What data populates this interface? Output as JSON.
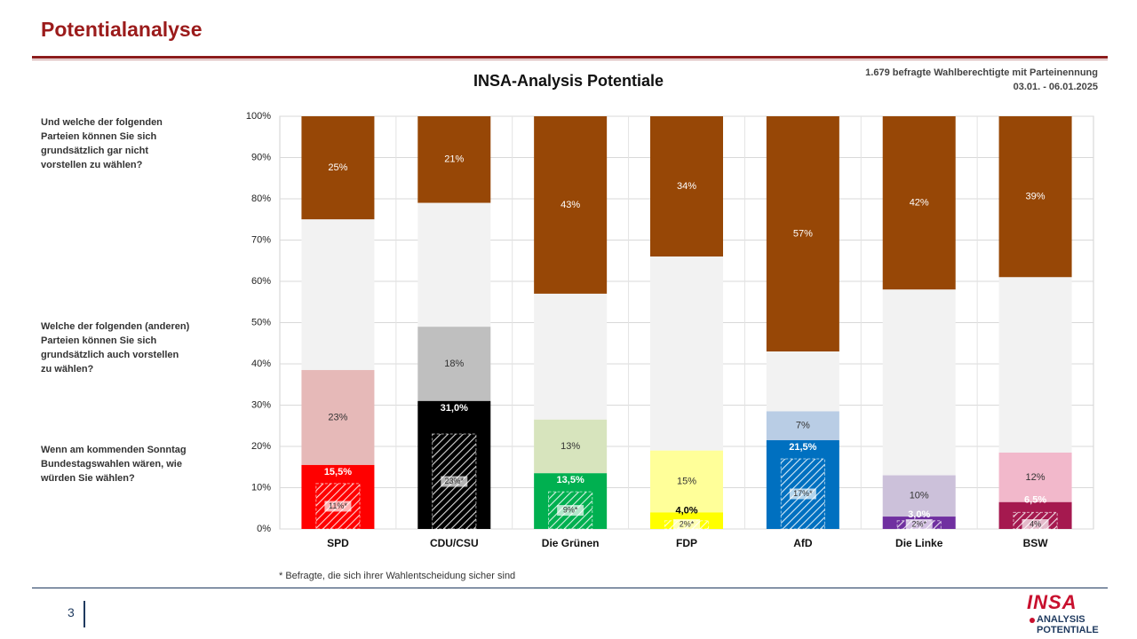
{
  "page_title": "Potentialanalyse",
  "sample_info": {
    "line1": "1.679 befragte Wahlberechtigte mit Parteinennung",
    "line2": "03.01. - 06.01.2025"
  },
  "questions": {
    "q1": "Und welche der folgenden Parteien können Sie sich grundsätzlich gar nicht vorstellen zu wählen?",
    "q2": "Welche der folgenden (anderen) Parteien können Sie sich grundsätzlich auch vorstellen zu wählen?",
    "q3": "Wenn am kommenden Sonntag Bundestagswahlen wären, wie würden Sie wählen?"
  },
  "footnote": "* Befragte, die sich ihrer Wahlentscheidung sicher sind",
  "page_number": "3",
  "logo": {
    "brand": "INSA",
    "line1": "ANALYSIS",
    "line2": "POTENTIALE"
  },
  "chart_data": {
    "type": "bar",
    "stacked": true,
    "title": "INSA-Analysis Potentiale",
    "ylim": [
      0,
      100
    ],
    "yticks": [
      "0%",
      "10%",
      "20%",
      "30%",
      "40%",
      "50%",
      "60%",
      "70%",
      "80%",
      "90%",
      "100%"
    ],
    "grid": true,
    "not_vote_color": "#974706",
    "parties": [
      {
        "name": "SPD",
        "vote": 15.5,
        "vote_label": "15,5%",
        "sure": 11,
        "sure_label": "11%*",
        "potential": 23,
        "potential_label": "23%",
        "not_vote": 25,
        "not_vote_label": "25%",
        "vote_color": "#ff0000",
        "potential_color": "#e6b9b8",
        "vote_text_color": "#ffffff",
        "potential_text_color": "#333333"
      },
      {
        "name": "CDU/CSU",
        "vote": 31.0,
        "vote_label": "31,0%",
        "sure": 23,
        "sure_label": "23%*",
        "potential": 18,
        "potential_label": "18%",
        "not_vote": 21,
        "not_vote_label": "21%",
        "vote_color": "#000000",
        "potential_color": "#bfbfbf",
        "vote_text_color": "#ffffff",
        "potential_text_color": "#333333"
      },
      {
        "name": "Die Grünen",
        "vote": 13.5,
        "vote_label": "13,5%",
        "sure": 9,
        "sure_label": "9%*",
        "potential": 13,
        "potential_label": "13%",
        "not_vote": 43,
        "not_vote_label": "43%",
        "vote_color": "#00b050",
        "potential_color": "#d7e4bd",
        "vote_text_color": "#ffffff",
        "potential_text_color": "#333333"
      },
      {
        "name": "FDP",
        "vote": 4.0,
        "vote_label": "4,0%",
        "sure": 2,
        "sure_label": "2%*",
        "potential": 15,
        "potential_label": "15%",
        "not_vote": 34,
        "not_vote_label": "34%",
        "vote_color": "#ffff00",
        "potential_color": "#ffff99",
        "vote_text_color": "#000000",
        "potential_text_color": "#333333"
      },
      {
        "name": "AfD",
        "vote": 21.5,
        "vote_label": "21,5%",
        "sure": 17,
        "sure_label": "17%*",
        "potential": 7,
        "potential_label": "7%",
        "not_vote": 57,
        "not_vote_label": "57%",
        "vote_color": "#0070c0",
        "potential_color": "#b9cde5",
        "vote_text_color": "#ffffff",
        "potential_text_color": "#333333"
      },
      {
        "name": "Die Linke",
        "vote": 3.0,
        "vote_label": "3,0%",
        "sure": 2,
        "sure_label": "2%*",
        "potential": 10,
        "potential_label": "10%",
        "not_vote": 42,
        "not_vote_label": "42%",
        "vote_color": "#7030a0",
        "potential_color": "#ccc1da",
        "vote_text_color": "#ffffff",
        "potential_text_color": "#333333"
      },
      {
        "name": "BSW",
        "vote": 6.5,
        "vote_label": "6,5%",
        "sure": 4,
        "sure_label": "4%",
        "potential": 12,
        "potential_label": "12%",
        "not_vote": 39,
        "not_vote_label": "39%",
        "vote_color": "#a5194f",
        "potential_color": "#f2b8cb",
        "vote_text_color": "#ffffff",
        "potential_text_color": "#333333"
      }
    ]
  }
}
